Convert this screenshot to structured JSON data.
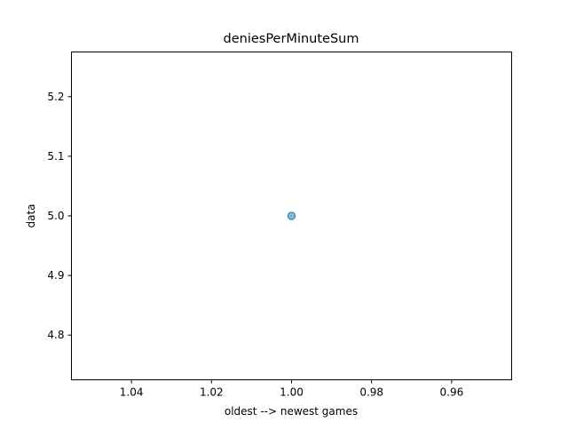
{
  "chart_data": {
    "type": "scatter",
    "title": "deniesPerMinuteSum",
    "xlabel": "oldest --> newest games",
    "ylabel": "data",
    "x_axis_inverted": true,
    "xlim": [
      1.055,
      0.945
    ],
    "ylim": [
      4.725,
      5.275
    ],
    "xticks": [
      1.04,
      1.02,
      1.0,
      0.98,
      0.96
    ],
    "xtick_labels": [
      "1.04",
      "1.02",
      "1.00",
      "0.98",
      "0.96"
    ],
    "yticks": [
      4.8,
      4.9,
      5.0,
      5.1,
      5.2
    ],
    "ytick_labels": [
      "4.8",
      "4.9",
      "5.0",
      "5.1",
      "5.2"
    ],
    "grid": false,
    "legend": "none",
    "series": [
      {
        "color": "#1f77b4",
        "points": [
          {
            "x": 1.0,
            "y": 5.0
          }
        ]
      }
    ]
  }
}
